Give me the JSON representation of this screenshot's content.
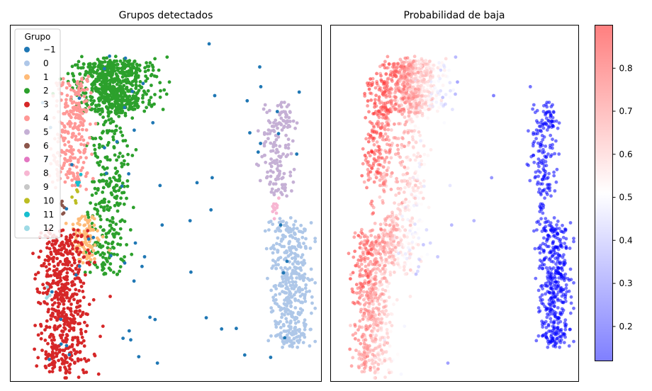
{
  "chart_data": [
    {
      "type": "scatter",
      "title": "Grupos detectados",
      "xlabel": "",
      "ylabel": "",
      "axes_ticks": false,
      "legend": {
        "title": "Grupo",
        "placement": "top-left",
        "entries": [
          {
            "label": "−1",
            "color": "#1f77b4"
          },
          {
            "label": "0",
            "color": "#aec7e8"
          },
          {
            "label": "1",
            "color": "#ffbb78"
          },
          {
            "label": "2",
            "color": "#2ca02c"
          },
          {
            "label": "3",
            "color": "#d62728"
          },
          {
            "label": "4",
            "color": "#ff9896"
          },
          {
            "label": "5",
            "color": "#c5b0d5"
          },
          {
            "label": "6",
            "color": "#8c564b"
          },
          {
            "label": "7",
            "color": "#e377c2"
          },
          {
            "label": "8",
            "color": "#f7b6d2"
          },
          {
            "label": "9",
            "color": "#c7c7c7"
          },
          {
            "label": "10",
            "color": "#bcbd22"
          },
          {
            "label": "11",
            "color": "#17becf"
          },
          {
            "label": "12",
            "color": "#9edae5"
          }
        ]
      },
      "clusters": [
        {
          "label": "2",
          "n": 650,
          "cx": [
            0.27,
            0.4
          ],
          "cy": [
            0.1,
            0.24
          ],
          "w": 0.14,
          "extra": [
            {
              "cx": 0.32,
              "cy": 0.45,
              "sx": 0.1,
              "sy": 0.25,
              "n": 300
            }
          ]
        },
        {
          "label": "4",
          "n": 260,
          "cx": [
            0.18,
            0.22
          ],
          "cy": [
            0.15,
            0.45
          ],
          "w": 0.08
        },
        {
          "label": "1",
          "n": 110,
          "cx": [
            0.24,
            0.24
          ],
          "cy": [
            0.54,
            0.66
          ],
          "w": 0.06
        },
        {
          "label": "3",
          "n": 560,
          "cx": [
            0.14,
            0.2
          ],
          "cy": [
            0.58,
            0.98
          ],
          "w": 0.11
        },
        {
          "label": "5",
          "n": 160,
          "cx": [
            0.83,
            0.89
          ],
          "cy": [
            0.22,
            0.48
          ],
          "w": 0.06
        },
        {
          "label": "0",
          "n": 420,
          "cx": [
            0.87,
            0.93
          ],
          "cy": [
            0.55,
            0.9
          ],
          "w": 0.08
        },
        {
          "label": "8",
          "n": 12,
          "cx": [
            0.85,
            0.86
          ],
          "cy": [
            0.5,
            0.53
          ],
          "w": 0.02
        },
        {
          "label": "11",
          "n": 5,
          "cx": [
            0.22,
            0.22
          ],
          "cy": [
            0.43,
            0.45
          ],
          "w": 0.015
        },
        {
          "label": "10",
          "n": 5,
          "cx": [
            0.21,
            0.21
          ],
          "cy": [
            0.46,
            0.49
          ],
          "w": 0.015
        },
        {
          "label": "6",
          "n": 6,
          "cx": [
            0.17,
            0.17
          ],
          "cy": [
            0.5,
            0.53
          ],
          "w": 0.015
        },
        {
          "label": "12",
          "n": 4,
          "cx": [
            0.12,
            0.12
          ],
          "cy": [
            0.74,
            0.76
          ],
          "w": 0.015
        },
        {
          "label": "−1",
          "n": 70,
          "cx": [
            0.1,
            0.95
          ],
          "cy": [
            0.05,
            0.95
          ],
          "w": 0.02,
          "scatter": true
        }
      ],
      "xlim": [
        0,
        1
      ],
      "ylim": [
        0,
        1
      ]
    },
    {
      "type": "scatter",
      "title": "Probabilidad de baja",
      "xlabel": "",
      "ylabel": "",
      "axes_ticks": false,
      "colormap": "bwr",
      "colorbar": {
        "range": [
          0.12,
          0.9
        ],
        "ticks": [
          "0.2",
          "0.3",
          "0.4",
          "0.5",
          "0.6",
          "0.7",
          "0.8"
        ],
        "tick_values": [
          0.2,
          0.3,
          0.4,
          0.5,
          0.6,
          0.7,
          0.8
        ]
      },
      "xlim": [
        0,
        1
      ],
      "ylim": [
        0,
        1
      ]
    }
  ]
}
